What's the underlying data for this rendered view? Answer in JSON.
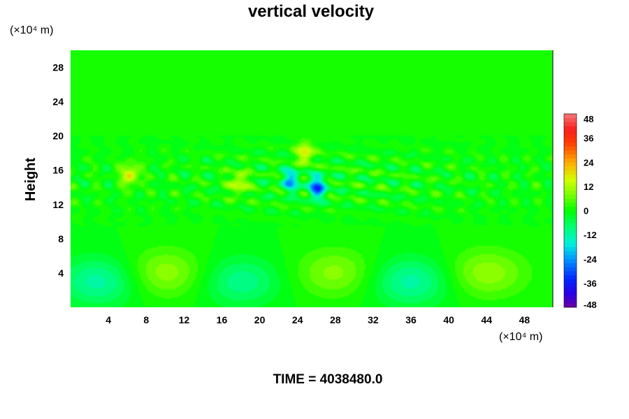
{
  "chart_data": {
    "type": "heatmap",
    "title": "vertical velocity",
    "ylabel": "Height",
    "xlabel": "",
    "x_unit": "(×10⁴ m)",
    "y_unit": "(×10⁴ m)",
    "x_range": [
      0,
      51
    ],
    "y_range": [
      0,
      30
    ],
    "x_ticks": [
      "4",
      "8",
      "12",
      "16",
      "20",
      "24",
      "28",
      "32",
      "36",
      "40",
      "44",
      "48"
    ],
    "y_ticks": [
      "4",
      "8",
      "12",
      "16",
      "20",
      "24",
      "28"
    ],
    "colorbar": {
      "range": [
        -48,
        48
      ],
      "ticks": [
        "48",
        "36",
        "24",
        "12",
        "0",
        "-12",
        "-24",
        "-36",
        "-48"
      ]
    },
    "footer": "TIME = 4038480.0",
    "field_features": {
      "lower_cells": [
        {
          "x": 3,
          "y": 3.0,
          "sign": -1,
          "strength": 12
        },
        {
          "x": 10,
          "y": 4.0,
          "sign": 1,
          "strength": 10
        },
        {
          "x": 18,
          "y": 3.0,
          "sign": -1,
          "strength": 10
        },
        {
          "x": 28,
          "y": 4.0,
          "sign": 1,
          "strength": 9
        },
        {
          "x": 36,
          "y": 3.0,
          "sign": -1,
          "strength": 12
        },
        {
          "x": 44,
          "y": 4.0,
          "sign": 1,
          "strength": 10
        }
      ],
      "upper_extremes": [
        {
          "x": 26.1,
          "y": 14.0,
          "sign": -1,
          "strength": 30
        },
        {
          "x": 23.3,
          "y": 14.8,
          "sign": -1,
          "strength": 22
        },
        {
          "x": 24.8,
          "y": 18.0,
          "sign": 1,
          "strength": 18
        },
        {
          "x": 6.3,
          "y": 15.5,
          "sign": 1,
          "strength": 18
        },
        {
          "x": 17.8,
          "y": 14.5,
          "sign": 1,
          "strength": 16
        }
      ]
    }
  }
}
